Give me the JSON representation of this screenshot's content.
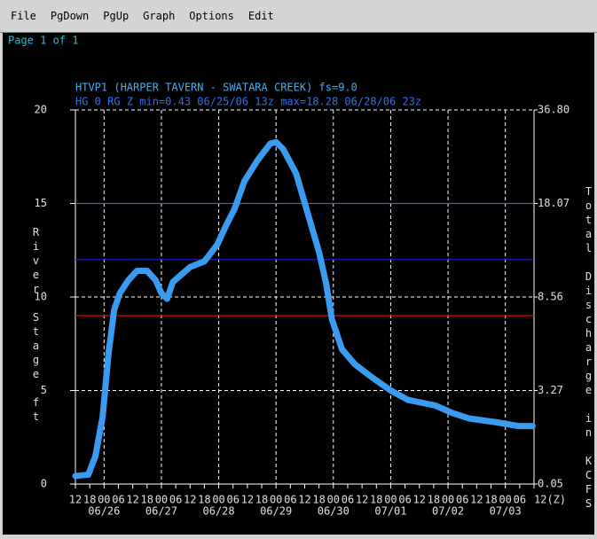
{
  "menu": [
    "File",
    "PgDown",
    "PgUp",
    "Graph",
    "Options",
    "Edit"
  ],
  "page_label": "Page 1 of 1",
  "chart_data": {
    "type": "line",
    "title": "HTVP1 (HARPER TAVERN - SWATARA CREEK) fs=9.0",
    "subtitle": "HG 0 RG Z min=0.43 06/25/06 13z max=18.28 06/28/06 23z",
    "ylabel": "River Stage ft",
    "y2label": "Total Discharge in KCFS",
    "ylim": [
      0,
      20
    ],
    "yticks": [
      0,
      5,
      10,
      15,
      20
    ],
    "y2tick_labels": [
      "0.05",
      "3.27",
      "8.56",
      "18.07",
      "36.80"
    ],
    "xlim": [
      0,
      32
    ],
    "xticks": [
      {
        "value": 0,
        "label": "12"
      },
      {
        "value": 1,
        "label": "18"
      },
      {
        "value": 2,
        "label": "00"
      },
      {
        "value": 3,
        "label": "06"
      },
      {
        "value": 4,
        "label": "12"
      },
      {
        "value": 5,
        "label": "18"
      },
      {
        "value": 6,
        "label": "00"
      },
      {
        "value": 7,
        "label": "06"
      },
      {
        "value": 8,
        "label": "12"
      },
      {
        "value": 9,
        "label": "18"
      },
      {
        "value": 10,
        "label": "00"
      },
      {
        "value": 11,
        "label": "06"
      },
      {
        "value": 12,
        "label": "12"
      },
      {
        "value": 13,
        "label": "18"
      },
      {
        "value": 14,
        "label": "00"
      },
      {
        "value": 15,
        "label": "06"
      },
      {
        "value": 16,
        "label": "12"
      },
      {
        "value": 17,
        "label": "18"
      },
      {
        "value": 18,
        "label": "00"
      },
      {
        "value": 19,
        "label": "06"
      },
      {
        "value": 20,
        "label": "12"
      },
      {
        "value": 21,
        "label": "18"
      },
      {
        "value": 22,
        "label": "00"
      },
      {
        "value": 23,
        "label": "06"
      },
      {
        "value": 24,
        "label": "12"
      },
      {
        "value": 25,
        "label": "18"
      },
      {
        "value": 26,
        "label": "00"
      },
      {
        "value": 27,
        "label": "06"
      },
      {
        "value": 28,
        "label": "12"
      },
      {
        "value": 29,
        "label": "18"
      },
      {
        "value": 30,
        "label": "00"
      },
      {
        "value": 31,
        "label": "06"
      },
      {
        "value": 32,
        "label": "12(Z)"
      }
    ],
    "date_ticks": [
      {
        "value": 2,
        "label": "06/26"
      },
      {
        "value": 6,
        "label": "06/27"
      },
      {
        "value": 10,
        "label": "06/28"
      },
      {
        "value": 14,
        "label": "06/29"
      },
      {
        "value": 18,
        "label": "06/30"
      },
      {
        "value": 22,
        "label": "07/01"
      },
      {
        "value": 26,
        "label": "07/02"
      },
      {
        "value": 30,
        "label": "07/03"
      }
    ],
    "grid": true,
    "thresholds": [
      {
        "value": 15,
        "color": "#8040c0"
      },
      {
        "value": 12,
        "color": "#2020d0"
      },
      {
        "value": 9,
        "color": "#d01010"
      }
    ],
    "series": [
      {
        "color": "#3a9cf0",
        "x": [
          0,
          0.9,
          1.4,
          1.9,
          2.3,
          2.7,
          3.1,
          3.7,
          4.3,
          5.0,
          5.6,
          6.0,
          6.4,
          6.8,
          7.4,
          8.0,
          9.0,
          9.9,
          10.5,
          11.1,
          11.8,
          12.7,
          13.6,
          14.0,
          14.5,
          15.4,
          17.0,
          17.5,
          17.9,
          18.6,
          19.5,
          20.7,
          22.0,
          23.2,
          25.1,
          26.3,
          27.5,
          29.4,
          30.9,
          31.9
        ],
        "values": [
          0.43,
          0.5,
          1.5,
          3.6,
          6.9,
          9.3,
          10.2,
          10.9,
          11.4,
          11.4,
          10.9,
          10.2,
          9.9,
          10.8,
          11.2,
          11.6,
          11.9,
          12.8,
          13.8,
          14.7,
          16.2,
          17.3,
          18.2,
          18.28,
          17.9,
          16.6,
          12.4,
          10.7,
          8.8,
          7.2,
          6.4,
          5.7,
          5.0,
          4.5,
          4.2,
          3.8,
          3.5,
          3.3,
          3.1,
          3.1
        ]
      }
    ]
  }
}
